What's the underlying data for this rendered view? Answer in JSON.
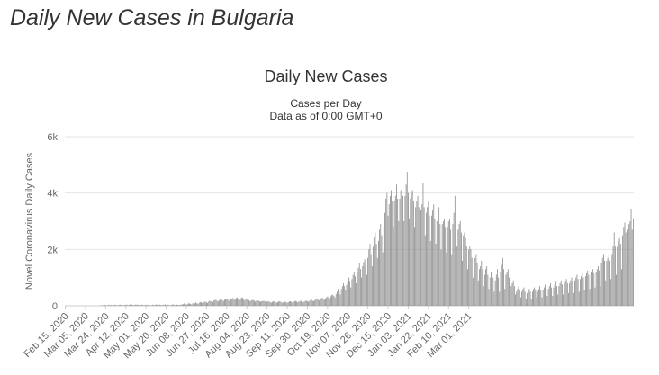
{
  "page": {
    "title": "Daily New Cases in Bulgaria"
  },
  "colors": {
    "bar": "#8c8c8c",
    "grid": "#e6e6e6",
    "axis_text": "#666666",
    "title_text": "#333333"
  },
  "chart_data": {
    "type": "bar",
    "title": "Daily New Cases",
    "subtitle_lines": [
      "Cases per Day",
      "Data as of 0:00 GMT+0"
    ],
    "xlabel": "",
    "ylabel": "Novel Coronavirus Daily Cases",
    "ylim": [
      0,
      6000
    ],
    "yticks": [
      0,
      2000,
      4000,
      6000
    ],
    "ytick_labels": [
      "0",
      "2k",
      "4k",
      "6k"
    ],
    "grid": true,
    "legend": "none",
    "x_tick_labels": [
      "Feb 15, 2020",
      "Mar 05, 2020",
      "Mar 24, 2020",
      "Apr 12, 2020",
      "May 01, 2020",
      "May 20, 2020",
      "Jun 08, 2020",
      "Jun 27, 2020",
      "Jul 16, 2020",
      "Aug 04, 2020",
      "Aug 23, 2020",
      "Sep 11, 2020",
      "Sep 30, 2020",
      "Oct 19, 2020",
      "Nov 07, 2020",
      "Nov 26, 2020",
      "Dec 15, 2020",
      "Jan 03, 2021",
      "Jan 22, 2021",
      "Feb 10, 2021",
      "Mar 01, 2021"
    ],
    "categories_start": "Feb 15, 2020",
    "categories_end": "Mar 11, 2021",
    "series": [
      {
        "values": [
          0,
          0,
          0,
          0,
          0,
          0,
          0,
          0,
          0,
          0,
          0,
          0,
          0,
          0,
          0,
          0,
          0,
          0,
          0,
          0,
          0,
          0,
          0,
          4,
          0,
          3,
          0,
          0,
          0,
          0,
          0,
          0,
          0,
          10,
          20,
          15,
          25,
          30,
          20,
          10,
          20,
          40,
          20,
          30,
          10,
          20,
          30,
          40,
          20,
          10,
          30,
          25,
          40,
          30,
          20,
          10,
          30,
          35,
          40,
          20,
          25,
          45,
          50,
          40,
          30,
          20,
          40,
          30,
          45,
          25,
          30,
          20,
          40,
          30,
          10,
          30,
          40,
          20,
          30,
          40,
          20,
          10,
          40,
          30,
          20,
          40,
          50,
          30,
          20,
          40,
          30,
          20,
          40,
          30,
          50,
          20,
          30,
          40,
          20,
          10,
          30,
          40,
          50,
          20,
          30,
          40,
          30,
          20,
          40,
          30,
          60,
          50,
          80,
          70,
          40,
          60,
          90,
          80,
          70,
          50,
          90,
          100,
          80,
          120,
          90,
          70,
          110,
          130,
          120,
          100,
          130,
          150,
          140,
          120,
          100,
          150,
          180,
          160,
          170,
          130,
          190,
          210,
          200,
          180,
          150,
          200,
          220,
          230,
          200,
          170,
          210,
          240,
          250,
          230,
          180,
          220,
          260,
          250,
          280,
          210,
          250,
          270,
          300,
          240,
          200,
          260,
          300,
          280,
          230,
          190,
          230,
          250,
          230,
          200,
          160,
          190,
          210,
          200,
          180,
          150,
          170,
          190,
          180,
          160,
          140,
          160,
          170,
          180,
          150,
          130,
          150,
          160,
          150,
          130,
          110,
          140,
          160,
          150,
          130,
          110,
          130,
          150,
          160,
          140,
          110,
          120,
          140,
          150,
          130,
          110,
          130,
          150,
          160,
          140,
          120,
          140,
          160,
          170,
          150,
          130,
          150,
          170,
          180,
          160,
          130,
          150,
          170,
          180,
          170,
          140,
          170,
          200,
          220,
          180,
          160,
          200,
          230,
          250,
          220,
          190,
          230,
          260,
          290,
          250,
          210,
          260,
          300,
          330,
          300,
          250,
          330,
          380,
          400,
          350,
          300,
          420,
          500,
          600,
          520,
          400,
          600,
          700,
          800,
          700,
          550,
          750,
          900,
          1000,
          850,
          650,
          950,
          1100,
          1200,
          1050,
          800,
          1200,
          1350,
          1500,
          1300,
          1000,
          1400,
          1550,
          1650,
          1400,
          1100,
          1700,
          2000,
          2200,
          1800,
          1400,
          2100,
          2450,
          2600,
          2200,
          1700,
          2300,
          2700,
          2900,
          2500,
          1900,
          2800,
          3300,
          3800,
          4000,
          3200,
          3600,
          3900,
          4100,
          3700,
          2800,
          3700,
          3900,
          4300,
          3800,
          3000,
          3800,
          4100,
          4200,
          3900,
          3000,
          3900,
          4300,
          4750,
          4000,
          3100,
          3800,
          4000,
          4100,
          3700,
          2800,
          3500,
          3700,
          3900,
          3500,
          2600,
          3400,
          3600,
          4350,
          3500,
          2500,
          3300,
          3500,
          3700,
          3200,
          2300,
          3200,
          3400,
          3600,
          3100,
          2200,
          3000,
          3300,
          3500,
          2900,
          2000,
          2900,
          3000,
          3100,
          2800,
          1900,
          2800,
          3000,
          3100,
          2700,
          1800,
          2900,
          3300,
          3900,
          3100,
          2100,
          2700,
          2900,
          3000,
          2600,
          1600,
          2500,
          2600,
          2400,
          2100,
          1300,
          2000,
          2100,
          2000,
          1700,
          1000,
          1500,
          1700,
          1800,
          1500,
          900,
          1300,
          1400,
          1600,
          1300,
          700,
          1100,
          1300,
          1400,
          1100,
          600,
          1000,
          1200,
          1300,
          1000,
          500,
          900,
          1100,
          1300,
          1000,
          500,
          1200,
          1450,
          1700,
          1300,
          600,
          1100,
          1200,
          1300,
          1000,
          500,
          700,
          800,
          900,
          700,
          400,
          500,
          600,
          700,
          550,
          300,
          500,
          600,
          650,
          500,
          250,
          450,
          550,
          600,
          500,
          250,
          500,
          600,
          650,
          550,
          300,
          500,
          600,
          700,
          550,
          300,
          550,
          650,
          750,
          600,
          350,
          600,
          700,
          800,
          650,
          350,
          650,
          750,
          850,
          700,
          400,
          700,
          800,
          900,
          750,
          400,
          750,
          850,
          950,
          800,
          450,
          800,
          900,
          1000,
          850,
          450,
          900,
          1000,
          1100,
          950,
          500,
          950,
          1050,
          1150,
          1000,
          550,
          1050,
          1150,
          1250,
          1100,
          600,
          1100,
          1200,
          1300,
          1150,
          650,
          1200,
          1300,
          1400,
          1250,
          700,
          1500,
          1700,
          1800,
          1600,
          900,
          1600,
          1700,
          1800,
          1600,
          950,
          1800,
          2100,
          2600,
          2100,
          1100,
          2100,
          2300,
          2400,
          2200,
          1300,
          2500,
          2800,
          2950,
          2600,
          1600,
          2700,
          2900,
          3000,
          3450,
          2700,
          3100
        ]
      }
    ]
  }
}
